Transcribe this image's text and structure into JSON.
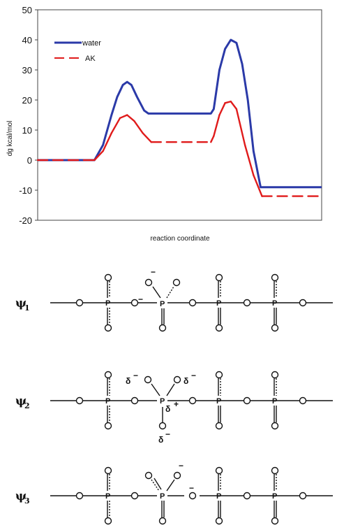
{
  "chart_data": {
    "type": "line",
    "title": "",
    "xlabel": "reaction coordinate",
    "ylabel": "dg kcal/mol",
    "ylim": [
      -20,
      50
    ],
    "yticks": [
      "50",
      "40",
      "30",
      "20",
      "10",
      "0",
      "-10",
      "-20"
    ],
    "ytick_values": [
      50,
      40,
      30,
      20,
      10,
      0,
      -10,
      -20
    ],
    "grid": false,
    "legend_position": "top-left",
    "series": [
      {
        "name": "water",
        "color": "#2b3aa8",
        "style": "solid",
        "points": [
          [
            0,
            0
          ],
          [
            20,
            0
          ],
          [
            23,
            5
          ],
          [
            26,
            15
          ],
          [
            28,
            21
          ],
          [
            30,
            25
          ],
          [
            31.5,
            26
          ],
          [
            33,
            25
          ],
          [
            35,
            21
          ],
          [
            37.5,
            16.5
          ],
          [
            39,
            15.5
          ],
          [
            61,
            15.5
          ],
          [
            62,
            17
          ],
          [
            64,
            30
          ],
          [
            66,
            37
          ],
          [
            68,
            40
          ],
          [
            70,
            39
          ],
          [
            72,
            32
          ],
          [
            74,
            20
          ],
          [
            76,
            3
          ],
          [
            78.5,
            -9
          ],
          [
            100,
            -9
          ]
        ]
      },
      {
        "name": "AK",
        "color": "#e01b1b",
        "style": "mixed",
        "points": [
          [
            0,
            0
          ],
          [
            20,
            0
          ],
          [
            23,
            3
          ],
          [
            26,
            9
          ],
          [
            29,
            14
          ],
          [
            31.5,
            15
          ],
          [
            34,
            13
          ],
          [
            37,
            9
          ],
          [
            40,
            6
          ],
          [
            61,
            6
          ],
          [
            62,
            8
          ],
          [
            64,
            15
          ],
          [
            66,
            19
          ],
          [
            68,
            19.5
          ],
          [
            70,
            17
          ],
          [
            73,
            5
          ],
          [
            76,
            -5
          ],
          [
            79,
            -12
          ],
          [
            100,
            -12
          ]
        ],
        "dashed_after": [
          40,
          61,
          79
        ]
      }
    ]
  },
  "structures": {
    "rows": [
      {
        "label": "ψ",
        "sub": "1",
        "charges": [
          "−",
          "−"
        ]
      },
      {
        "label": "ψ",
        "sub": "2",
        "charges": [
          "δ",
          "−",
          "δ",
          "−",
          "δ",
          "+",
          "δ",
          "−"
        ]
      },
      {
        "label": "ψ",
        "sub": "3",
        "charges": [
          "−",
          "−"
        ]
      }
    ],
    "atom": "P"
  }
}
